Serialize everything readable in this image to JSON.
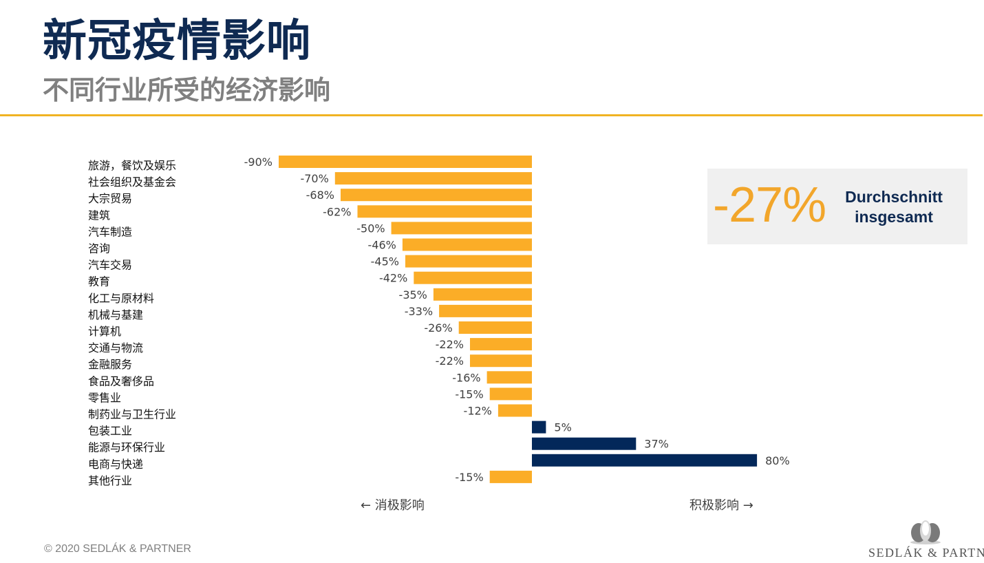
{
  "header": {
    "title": "新冠疫情影响",
    "subtitle": "不同行业所受的经济影响"
  },
  "chart_data": {
    "type": "bar",
    "orientation": "horizontal",
    "categories": [
      "旅游，餐饮及娱乐",
      "社会组织及基金会",
      "大宗贸易",
      "建筑",
      "汽车制造",
      "咨询",
      "汽车交易",
      "教育",
      "化工与原材料",
      "机械与基建",
      "计算机",
      "交通与物流",
      "金融服务",
      "食品及奢侈品",
      "零售业",
      "制药业与卫生行业",
      "包装工业",
      "能源与环保行业",
      "电商与快递",
      "其他行业"
    ],
    "values": [
      -90,
      -70,
      -68,
      -62,
      -50,
      -46,
      -45,
      -42,
      -35,
      -33,
      -26,
      -22,
      -22,
      -16,
      -15,
      -12,
      5,
      37,
      80,
      -15
    ],
    "value_labels": [
      "-90%",
      "-70%",
      "-68%",
      "-62%",
      "-50%",
      "-46%",
      "-45%",
      "-42%",
      "-35%",
      "-33%",
      "-26%",
      "-22%",
      "-22%",
      "-16%",
      "-15%",
      "-12%",
      "5%",
      "37%",
      "80%",
      "-15%"
    ],
    "unit": "%",
    "xlim": [
      -90,
      80
    ],
    "negative_color": "#fbad27",
    "positive_color": "#03285a",
    "grid": false,
    "legend": "none",
    "direction_labels": {
      "negative": "← 消极影响",
      "positive": "积极影响 →"
    }
  },
  "average": {
    "value": "-27%",
    "caption": "Durchschnitt insgesamt"
  },
  "footer": {
    "copyright": "© 2020 SEDLÁK & PARTNER",
    "logo_text": "SEDLÁK & PARTNER"
  },
  "colors": {
    "title": "#0f2a52",
    "accent_rule": "#f0b323",
    "average_value": "#f2a62b"
  }
}
